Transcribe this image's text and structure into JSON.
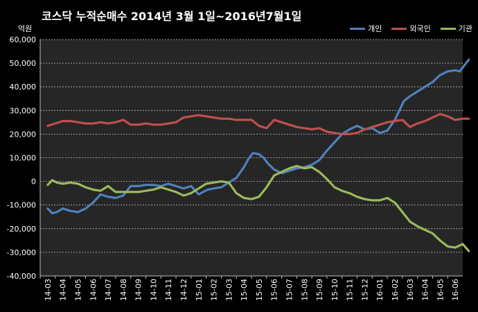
{
  "chart_data": {
    "type": "line",
    "title": "코스닥  누적순매수 2014년 3월 1일~2016년7월1일",
    "ylabel": "억원",
    "ylim": [
      -40000,
      60000
    ],
    "yticks": [
      "60,000",
      "50,000",
      "40,000",
      "30,000",
      "20,000",
      "10,000",
      "0",
      "-10,000",
      "-20,000",
      "-30,000",
      "-40,000"
    ],
    "ytick_values": [
      60000,
      50000,
      40000,
      30000,
      20000,
      10000,
      0,
      -10000,
      -20000,
      -30000,
      -40000
    ],
    "categories": [
      "14-03",
      "14-04",
      "14-05",
      "14-06",
      "14-07",
      "14-08",
      "14-09",
      "14-10",
      "14-11",
      "14-12",
      "15-01",
      "15-02",
      "15-03",
      "15-04",
      "15-05",
      "15-06",
      "15-07",
      "15-08",
      "15-09",
      "15-10",
      "15-11",
      "15-12",
      "16-01",
      "16-02",
      "16-03",
      "16-04",
      "16-05",
      "16-06"
    ],
    "grid": true,
    "legend_position": "top-right",
    "series": [
      {
        "name": "개인",
        "color": "#4F81BD",
        "x": [
          0,
          0.3,
          0.6,
          1,
          1.5,
          2,
          2.5,
          3,
          3.5,
          4,
          4.5,
          5,
          5.5,
          6,
          6.5,
          7,
          7.5,
          8,
          8.5,
          9,
          9.5,
          10,
          10.3,
          10.6,
          11,
          11.5,
          12,
          12.5,
          13,
          13.3,
          13.6,
          14,
          14.3,
          14.6,
          15,
          15.5,
          16,
          16.5,
          17,
          17.5,
          18,
          18.5,
          19,
          19.5,
          20,
          20.5,
          21,
          21.5,
          22,
          22.5,
          23,
          23.3,
          23.6,
          24,
          24.5,
          25,
          25.5,
          26,
          26.5,
          27,
          27.3,
          27.6,
          27.9
        ],
        "y": [
          -11500,
          -13500,
          -13000,
          -11500,
          -12500,
          -13000,
          -11500,
          -9000,
          -5500,
          -6500,
          -7000,
          -6000,
          -2000,
          -2000,
          -1500,
          -1500,
          -2000,
          -1000,
          -2000,
          -3000,
          -2000,
          -5500,
          -4500,
          -3500,
          -3000,
          -2500,
          -500,
          1500,
          6000,
          9500,
          12000,
          11500,
          10000,
          7500,
          5000,
          3500,
          4500,
          5500,
          6000,
          7000,
          9000,
          13000,
          16500,
          20000,
          22000,
          23500,
          22000,
          22500,
          20500,
          21500,
          26000,
          30000,
          34000,
          36000,
          38000,
          40000,
          42000,
          45000,
          46500,
          47000,
          46500,
          49000,
          51500
        ]
      },
      {
        "name": "외국인",
        "color": "#C0504D",
        "x": [
          0,
          0.5,
          1,
          1.5,
          2,
          2.5,
          3,
          3.5,
          4,
          4.5,
          5,
          5.5,
          6,
          6.5,
          7,
          7.5,
          8,
          8.5,
          9,
          9.5,
          10,
          10.5,
          11,
          11.5,
          12,
          12.5,
          13,
          13.5,
          14,
          14.5,
          15,
          15.5,
          16,
          16.5,
          17,
          17.5,
          18,
          18.5,
          19,
          19.5,
          20,
          20.5,
          21,
          21.5,
          22,
          22.5,
          23,
          23.5,
          24,
          24.5,
          25,
          25.5,
          26,
          26.5,
          27,
          27.5,
          27.9
        ],
        "y": [
          23500,
          24500,
          25500,
          25500,
          25000,
          24500,
          24500,
          25000,
          24500,
          25000,
          26000,
          24000,
          24000,
          24500,
          24000,
          24000,
          24500,
          25000,
          27000,
          27500,
          28000,
          27500,
          27000,
          26500,
          26500,
          26000,
          26000,
          26000,
          23500,
          22500,
          26000,
          25000,
          24000,
          23000,
          22500,
          22000,
          22500,
          21000,
          20500,
          20000,
          20000,
          20500,
          22000,
          23000,
          24000,
          25000,
          25500,
          26000,
          23000,
          24500,
          25500,
          27000,
          28500,
          27500,
          26000,
          26500,
          26500
        ]
      },
      {
        "name": "기관",
        "color": "#9BBB59",
        "x": [
          0,
          0.3,
          0.6,
          1,
          1.5,
          2,
          2.5,
          3,
          3.5,
          4,
          4.5,
          5,
          5.5,
          6,
          6.5,
          7,
          7.5,
          8,
          8.5,
          9,
          9.5,
          10,
          10.5,
          11,
          11.5,
          12,
          12.5,
          13,
          13.5,
          14,
          14.5,
          15,
          15.5,
          16,
          16.5,
          17,
          17.5,
          18,
          18.5,
          19,
          19.5,
          20,
          20.5,
          21,
          21.5,
          22,
          22.5,
          23,
          23.5,
          24,
          24.5,
          25,
          25.5,
          26,
          26.5,
          27,
          27.5,
          27.9
        ],
        "y": [
          -1500,
          500,
          -500,
          -1000,
          -500,
          -1000,
          -2500,
          -3500,
          -4000,
          -2000,
          -4500,
          -4500,
          -4500,
          -4500,
          -4000,
          -3500,
          -2500,
          -3500,
          -4500,
          -6000,
          -5000,
          -3000,
          -1000,
          -500,
          0,
          -500,
          -5000,
          -7000,
          -7500,
          -6500,
          -2500,
          2500,
          4000,
          5500,
          6500,
          5500,
          6000,
          4000,
          1000,
          -2500,
          -4000,
          -5000,
          -6500,
          -7500,
          -8000,
          -8000,
          -7000,
          -9000,
          -13000,
          -17000,
          -19000,
          -20500,
          -22000,
          -25000,
          -27500,
          -28000,
          -26500,
          -29500
        ]
      }
    ]
  }
}
